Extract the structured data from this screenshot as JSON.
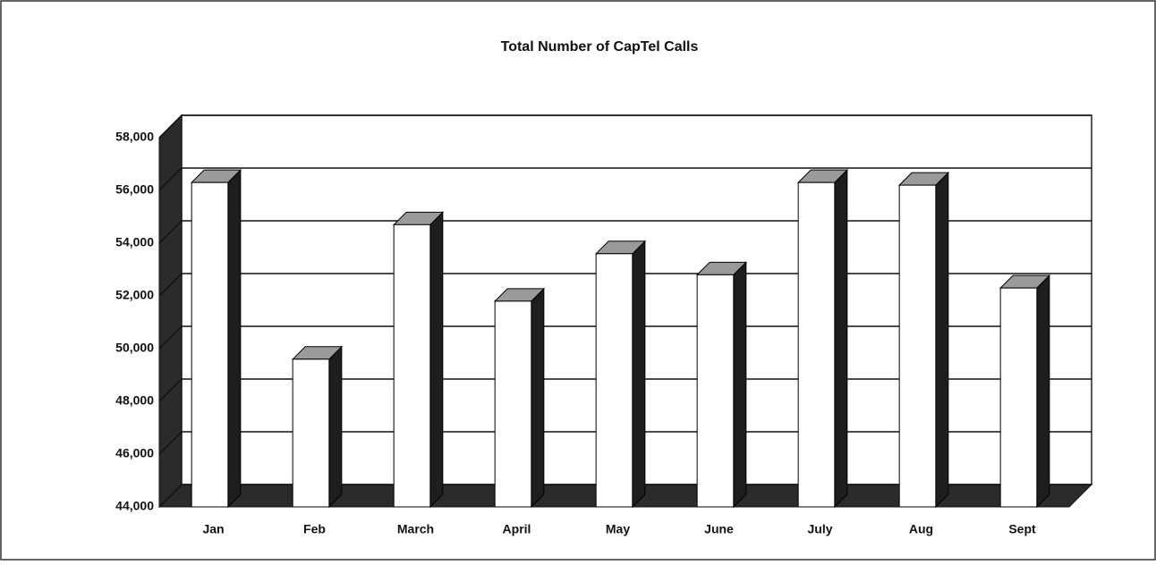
{
  "chart_data": {
    "type": "bar",
    "title": "Total Number of CapTel Calls",
    "categories": [
      "Jan",
      "Feb",
      "March",
      "April",
      "May",
      "June",
      "July",
      "Aug",
      "Sept"
    ],
    "values": [
      56300,
      49600,
      54700,
      51800,
      53600,
      52800,
      56300,
      56200,
      52300
    ],
    "color": "#ffffff",
    "ylim": [
      44000,
      58000
    ],
    "yticks": [
      {
        "value": 44000,
        "label": "44,000"
      },
      {
        "value": 46000,
        "label": "46,000"
      },
      {
        "value": 48000,
        "label": "48,000"
      },
      {
        "value": 50000,
        "label": "50,000"
      },
      {
        "value": 52000,
        "label": "52,000"
      },
      {
        "value": 54000,
        "label": "54,000"
      },
      {
        "value": 56000,
        "label": "56,000"
      },
      {
        "value": 58000,
        "label": "58,000"
      }
    ],
    "grid": true
  }
}
